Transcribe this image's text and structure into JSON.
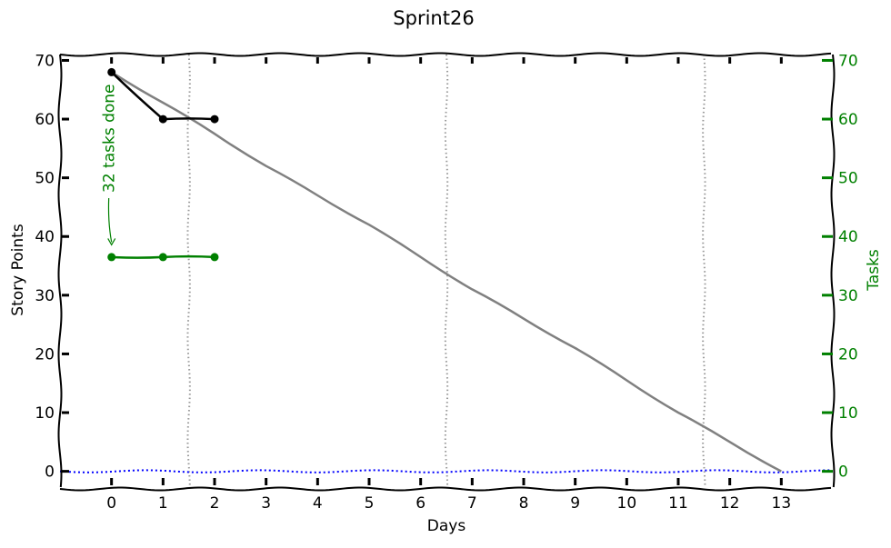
{
  "chart_data": {
    "type": "line",
    "title": "Sprint26",
    "xlabel": "Days",
    "ylabel": "Story Points",
    "y2label": "Tasks",
    "xlim": [
      -1,
      14
    ],
    "ylim": [
      -3,
      71
    ],
    "y2lim": [
      -3,
      71
    ],
    "xticks": [
      0,
      1,
      2,
      3,
      4,
      5,
      6,
      7,
      8,
      9,
      10,
      11,
      12,
      13
    ],
    "yticks": [
      0,
      10,
      20,
      30,
      40,
      50,
      60,
      70
    ],
    "y2ticks": [
      0,
      10,
      20,
      30,
      40,
      50,
      60,
      70
    ],
    "grid": false,
    "weekend_markers_x": [
      1.5,
      6.5,
      11.5
    ],
    "series": [
      {
        "role": "ideal",
        "axis": "left",
        "color": "#808080",
        "x": [
          0,
          1,
          2,
          3,
          4,
          5,
          6,
          7,
          8,
          9,
          10,
          11,
          12,
          13
        ],
        "values": [
          68,
          62.8,
          57.5,
          52,
          47,
          42,
          36.5,
          31,
          26,
          21,
          15.5,
          10,
          5,
          0
        ]
      },
      {
        "role": "story_points_remaining",
        "axis": "left",
        "color": "#000000",
        "x": [
          0,
          1,
          2
        ],
        "values": [
          68,
          60,
          60
        ]
      },
      {
        "role": "tasks_remaining",
        "axis": "right",
        "color": "#008000",
        "x": [
          0,
          1,
          2
        ],
        "values": [
          36.5,
          36.5,
          36.5
        ]
      },
      {
        "role": "zero_line",
        "axis": "left",
        "color": "#0000ff",
        "x": [
          -1,
          14
        ],
        "values": [
          0,
          0
        ]
      }
    ],
    "annotations": [
      {
        "text": "32 tasks done",
        "color": "#008000",
        "arrow_to": {
          "x": 0,
          "y": 37.5
        }
      }
    ]
  }
}
